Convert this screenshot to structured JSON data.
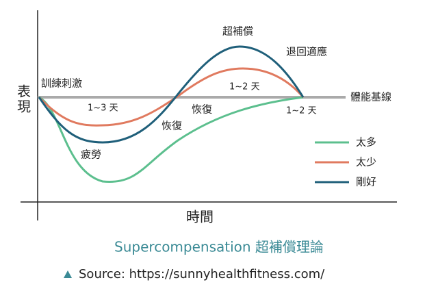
{
  "axes": {
    "y_label": "表現",
    "x_label": "時間",
    "baseline_label": "體能基線"
  },
  "annotations": [
    "訓練刺激",
    "1~3 天",
    "疲勞",
    "恢復",
    "恢復",
    "超補償",
    "退回適應",
    "1~2 天",
    "1~2 天"
  ],
  "legend": [
    {
      "name": "太多",
      "color": "#5cbf8e"
    },
    {
      "name": "太少",
      "color": "#e07a5f"
    },
    {
      "name": "剛好",
      "color": "#1f5f7a"
    }
  ],
  "caption": "Supercompensation 超補償理論",
  "source": "Source: https://sunnyhealthfitness.com/"
}
